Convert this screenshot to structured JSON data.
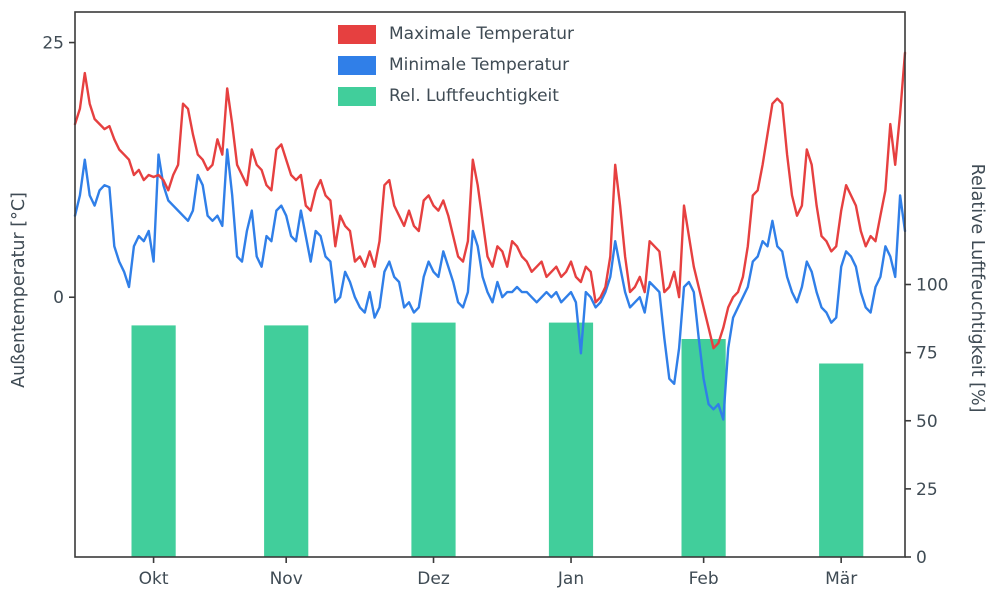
{
  "chart_data": {
    "type": "line+bar",
    "title": "",
    "x_range": [
      0,
      169
    ],
    "x_ticks": {
      "positions": [
        16,
        43,
        73,
        101,
        128,
        156
      ],
      "labels": [
        "Okt",
        "Nov",
        "Dez",
        "Jan",
        "Feb",
        "Mär"
      ]
    },
    "left_axis": {
      "label": "Außentemperatur [°C]",
      "ylim": [
        -25.5,
        28
      ],
      "ticks": [
        0,
        25
      ]
    },
    "right_axis": {
      "label": "Relative Luftfeuchtigkeit [%]",
      "ylim": [
        0,
        200
      ],
      "ticks": [
        0,
        25,
        50,
        75,
        100
      ]
    },
    "legend": {
      "position": "upper center-left",
      "entries": [
        "Maximale Temperatur",
        "Minimale Temperatur",
        "Rel. Luftfeuchtigkeit"
      ]
    },
    "colors": {
      "max_temp": "#e64040",
      "min_temp": "#307fe8",
      "humidity": "#41ce9b",
      "axis_text": "#3f4b54",
      "spine": "#3a3a3a",
      "background": "#ffffff"
    },
    "series": [
      {
        "name": "Maximale Temperatur",
        "type": "line",
        "axis": "left",
        "color": "#e64040",
        "values": [
          17,
          18.5,
          22,
          19,
          17.5,
          17,
          16.5,
          16.8,
          15.5,
          14.5,
          14,
          13.5,
          12,
          12.5,
          11.5,
          12,
          11.8,
          12,
          11.5,
          10.5,
          12,
          13,
          19,
          18.5,
          16,
          14,
          13.5,
          12.5,
          13,
          15.5,
          14,
          20.5,
          17,
          13,
          12,
          11,
          14.5,
          13,
          12.5,
          11,
          10.5,
          14.5,
          15,
          13.5,
          12,
          11.5,
          12,
          9,
          8.5,
          10.5,
          11.5,
          10,
          9.5,
          5,
          8,
          7,
          6.5,
          3.5,
          4,
          3,
          4.5,
          3,
          5.5,
          11,
          11.5,
          9,
          8,
          7,
          8.5,
          7,
          6.5,
          9.5,
          10,
          9,
          8.5,
          9.5,
          8,
          6,
          4,
          3.5,
          5.5,
          13.5,
          11,
          7.5,
          4,
          3,
          5,
          4.5,
          3,
          5.5,
          5,
          4,
          3.5,
          2.5,
          3,
          3.5,
          2,
          2.5,
          3,
          2,
          2.5,
          3.5,
          2,
          1.5,
          3,
          2.5,
          -0.5,
          0,
          1,
          4,
          13,
          9,
          4,
          0.5,
          1,
          2,
          0.5,
          5.5,
          5,
          4.5,
          0.5,
          1,
          2.5,
          0,
          9,
          6,
          3,
          1,
          -1,
          -3,
          -5,
          -4.5,
          -3,
          -1,
          0,
          0.5,
          2,
          5,
          10,
          10.5,
          13,
          16,
          19,
          19.5,
          19,
          14,
          10,
          8,
          9,
          14.5,
          13,
          9,
          6,
          5.5,
          4.5,
          5,
          8.5,
          11,
          10,
          9,
          6.5,
          5,
          6,
          5.5,
          8,
          10.5,
          17,
          13,
          18,
          24
        ]
      },
      {
        "name": "Minimale Temperatur",
        "type": "line",
        "axis": "left",
        "color": "#307fe8",
        "values": [
          8,
          10,
          13.5,
          10,
          9,
          10.5,
          11,
          10.8,
          5,
          3.5,
          2.5,
          1,
          5,
          6,
          5.5,
          6.5,
          3.5,
          14,
          11,
          9.5,
          9,
          8.5,
          8,
          7.5,
          8.5,
          12,
          11,
          8,
          7.5,
          8,
          7,
          14.5,
          10,
          4,
          3.5,
          6.5,
          8.5,
          4,
          3,
          6,
          5.5,
          8.5,
          9,
          8,
          6,
          5.5,
          8.5,
          6,
          3.5,
          6.5,
          6,
          4,
          3.5,
          -0.5,
          0,
          2.5,
          1.5,
          0,
          -1,
          -1.5,
          0.5,
          -2,
          -1,
          2.5,
          3.5,
          2,
          1.5,
          -1,
          -0.5,
          -1.5,
          -1,
          2,
          3.5,
          2.5,
          2,
          4.5,
          3,
          1.5,
          -0.5,
          -1,
          0.5,
          6.5,
          5,
          2,
          0.5,
          -0.5,
          1.5,
          0,
          0.5,
          0.5,
          1,
          0.5,
          0.5,
          0,
          -0.5,
          0,
          0.5,
          0,
          0.5,
          -0.5,
          0,
          0.5,
          -0.5,
          -5.5,
          0.5,
          0,
          -1,
          -0.5,
          0.5,
          2,
          5.5,
          3,
          0.5,
          -1,
          -0.5,
          0,
          -1.5,
          1.5,
          1,
          0.5,
          -4,
          -8,
          -8.5,
          -5,
          1,
          1.5,
          0.5,
          -4,
          -8,
          -10.5,
          -11,
          -10.5,
          -12,
          -5,
          -2,
          -1,
          0,
          1,
          3.5,
          4,
          5.5,
          5,
          7.5,
          5,
          4.5,
          2,
          0.5,
          -0.5,
          1,
          3.5,
          2.5,
          0.5,
          -1,
          -1.5,
          -2.5,
          -2,
          3,
          4.5,
          4,
          3,
          0.5,
          -1,
          -1.5,
          1,
          2,
          5,
          4,
          2,
          10,
          6.5
        ]
      },
      {
        "name": "Rel. Luftfeuchtigkeit",
        "type": "bar",
        "axis": "right",
        "color": "#41ce9b",
        "x": [
          16,
          43,
          73,
          101,
          128,
          156
        ],
        "values": [
          85,
          85,
          86,
          86,
          80,
          71
        ],
        "bar_width_days": 9
      }
    ]
  }
}
